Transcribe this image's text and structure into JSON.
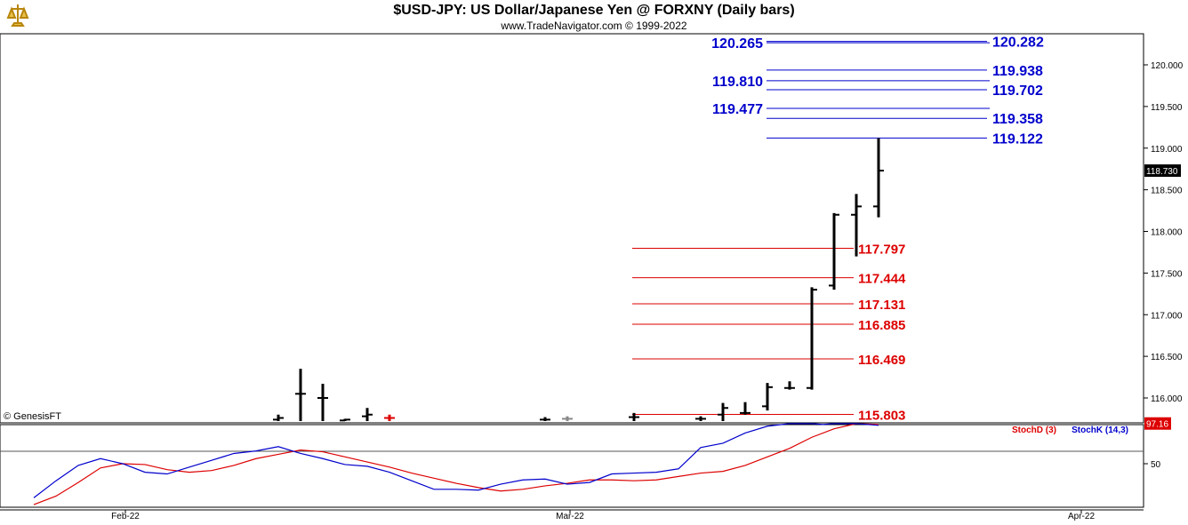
{
  "header": {
    "title": "$USD-JPY:  US Dollar/Japanese Yen @ FORXNY  (Daily bars)",
    "subtitle": "www.TradeNavigator.com © 1999-2022"
  },
  "watermark": "© GenesisFT",
  "colors": {
    "resistance": "#0000cc",
    "support": "#dd0000",
    "bars": "#000000",
    "stochD": "#dd0000",
    "stochK": "#0000cc"
  },
  "chart_data": [
    {
      "type": "ohlc",
      "y_axis": {
        "ticks": [
          "116.000",
          "116.500",
          "117.000",
          "117.500",
          "118.000",
          "118.500",
          "119.000",
          "119.500",
          "120.000"
        ],
        "range": [
          115.75,
          120.35
        ],
        "position": "right"
      },
      "last_price": "118.730",
      "x_axis": {
        "ticks": [
          "Feb-22",
          "Mar-22",
          "Apr-22"
        ]
      },
      "bars": [
        {
          "i": 11,
          "high": 115.8,
          "low": 115.72,
          "open": 115.74,
          "close": 115.76,
          "color": "#000"
        },
        {
          "i": 12,
          "high": 116.35,
          "low": 115.72,
          "open": 116.05,
          "close": 116.05,
          "color": "#000"
        },
        {
          "i": 13,
          "high": 116.17,
          "low": 115.72,
          "open": 116.0,
          "close": 116.0,
          "color": "#000"
        },
        {
          "i": 14,
          "high": 115.75,
          "low": 115.72,
          "open": 115.73,
          "close": 115.74,
          "color": "#000"
        },
        {
          "i": 15,
          "high": 115.88,
          "low": 115.72,
          "open": 115.78,
          "close": 115.8,
          "color": "#000"
        },
        {
          "i": 16,
          "high": 115.8,
          "low": 115.72,
          "open": 115.76,
          "close": 115.76,
          "color": "#dd0000"
        },
        {
          "i": 23,
          "high": 115.77,
          "low": 115.72,
          "open": 115.74,
          "close": 115.74,
          "color": "#000"
        },
        {
          "i": 24,
          "high": 115.78,
          "low": 115.72,
          "open": 115.75,
          "close": 115.75,
          "color": "#888"
        },
        {
          "i": 27,
          "high": 115.82,
          "low": 115.72,
          "open": 115.77,
          "close": 115.77,
          "color": "#000"
        },
        {
          "i": 30,
          "high": 115.78,
          "low": 115.72,
          "open": 115.75,
          "close": 115.75,
          "color": "#000"
        },
        {
          "i": 31,
          "high": 115.94,
          "low": 115.72,
          "open": 115.8,
          "close": 115.88,
          "color": "#000"
        },
        {
          "i": 32,
          "high": 115.95,
          "low": 115.8,
          "open": 115.82,
          "close": 115.82,
          "color": "#000"
        },
        {
          "i": 33,
          "high": 116.18,
          "low": 115.85,
          "open": 115.9,
          "close": 116.13,
          "color": "#000"
        },
        {
          "i": 34,
          "high": 116.2,
          "low": 116.1,
          "open": 116.12,
          "close": 116.12,
          "color": "#000"
        },
        {
          "i": 35,
          "high": 117.33,
          "low": 116.1,
          "open": 116.12,
          "close": 117.3,
          "color": "#000"
        },
        {
          "i": 36,
          "high": 118.22,
          "low": 117.3,
          "open": 117.35,
          "close": 118.2,
          "color": "#000"
        },
        {
          "i": 37,
          "high": 118.45,
          "low": 117.7,
          "open": 118.2,
          "close": 118.3,
          "color": "#000"
        },
        {
          "i": 38,
          "high": 119.12,
          "low": 118.17,
          "open": 118.3,
          "close": 118.73,
          "color": "#000"
        }
      ],
      "levels_resistance": [
        {
          "value": 120.282,
          "label": "120.282",
          "side": "right"
        },
        {
          "value": 120.265,
          "label": "120.265",
          "side": "left"
        },
        {
          "value": 119.938,
          "label": "119.938",
          "side": "right"
        },
        {
          "value": 119.81,
          "label": "119.810",
          "side": "left"
        },
        {
          "value": 119.702,
          "label": "119.702",
          "side": "right"
        },
        {
          "value": 119.477,
          "label": "119.477",
          "side": "left"
        },
        {
          "value": 119.358,
          "label": "119.358",
          "side": "right"
        },
        {
          "value": 119.122,
          "label": "119.122",
          "side": "right"
        }
      ],
      "levels_support": [
        {
          "value": 117.797,
          "label": "117.797"
        },
        {
          "value": 117.444,
          "label": "117.444"
        },
        {
          "value": 117.131,
          "label": "117.131"
        },
        {
          "value": 116.885,
          "label": "116.885"
        },
        {
          "value": 116.469,
          "label": "116.469"
        },
        {
          "value": 115.803,
          "label": "115.803"
        }
      ]
    },
    {
      "type": "line",
      "y_axis": {
        "ticks": [
          "50"
        ],
        "range": [
          0,
          100
        ]
      },
      "last_value": "97.16",
      "series": [
        {
          "name": "StochD (3)",
          "x": [
            0,
            1,
            2,
            3,
            4,
            5,
            6,
            7,
            8,
            9,
            10,
            11,
            12,
            13,
            14,
            15,
            16,
            17,
            18,
            19,
            20,
            21,
            22,
            23,
            24,
            25,
            26,
            27,
            28,
            29,
            30,
            31,
            32,
            33,
            34,
            35,
            36,
            37,
            38
          ],
          "values": [
            2,
            12,
            28,
            45,
            50,
            49,
            43,
            40,
            42,
            48,
            56,
            61,
            66,
            64,
            58,
            52,
            46,
            39,
            33,
            27,
            22,
            18,
            20,
            24,
            27,
            31,
            31,
            30,
            31,
            35,
            39,
            41,
            48,
            58,
            68,
            81,
            91,
            97,
            96
          ]
        },
        {
          "name": "StochK (14,3)",
          "x": [
            0,
            1,
            2,
            3,
            4,
            5,
            6,
            7,
            8,
            9,
            10,
            11,
            12,
            13,
            14,
            15,
            16,
            17,
            18,
            19,
            20,
            21,
            22,
            23,
            24,
            25,
            26,
            27,
            28,
            29,
            30,
            31,
            32,
            33,
            34,
            35,
            35.5,
            36,
            37,
            38
          ],
          "values": [
            10,
            30,
            48,
            56,
            50,
            40,
            38,
            46,
            54,
            62,
            65,
            70,
            62,
            56,
            49,
            47,
            40,
            30,
            20,
            20,
            19,
            26,
            31,
            32,
            26,
            28,
            38,
            39,
            40,
            44,
            69,
            74,
            86,
            94,
            97,
            97,
            96,
            97,
            97,
            95
          ]
        }
      ]
    }
  ]
}
